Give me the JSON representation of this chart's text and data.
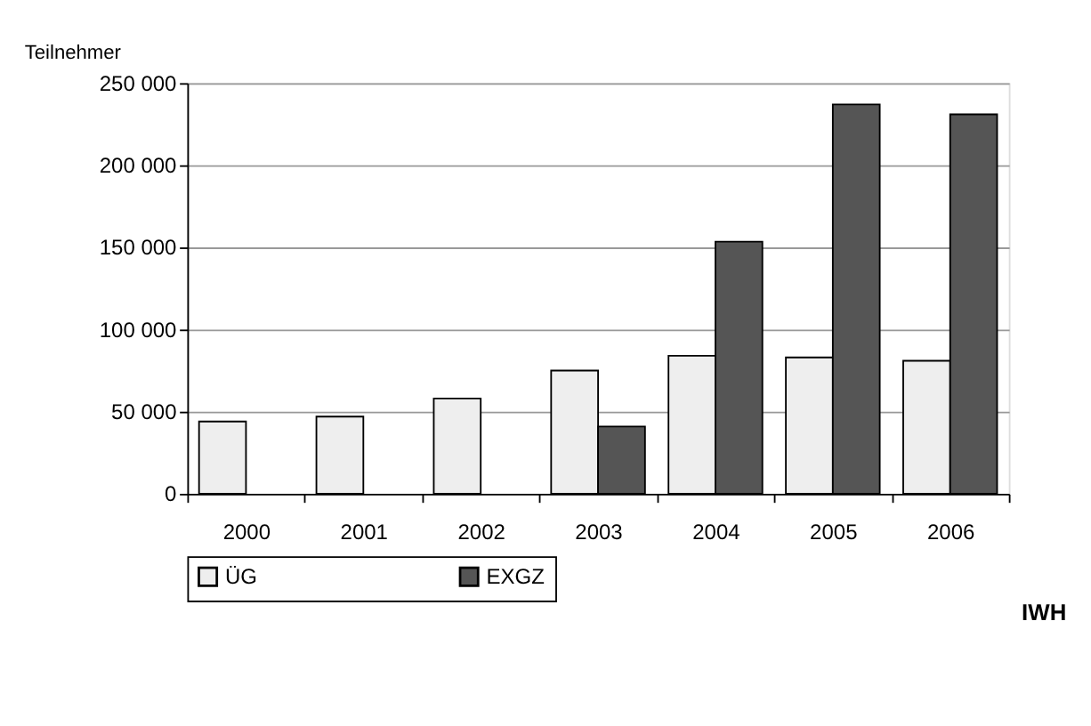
{
  "chart_data": {
    "type": "bar",
    "ylabel": "Teilnehmer",
    "categories": [
      "2000",
      "2001",
      "2002",
      "2003",
      "2004",
      "2005",
      "2006"
    ],
    "series": [
      {
        "name": "ÜG",
        "color": "#eeeeee",
        "values": [
          44000,
          47000,
          58000,
          75000,
          84000,
          83000,
          81000
        ]
      },
      {
        "name": "EXGZ",
        "color": "#555555",
        "values": [
          null,
          null,
          null,
          41000,
          153500,
          237000,
          231000
        ]
      }
    ],
    "ylim": [
      0,
      250000
    ],
    "yticks": [
      {
        "value": 0,
        "label": "0"
      },
      {
        "value": 50000,
        "label": "50 000"
      },
      {
        "value": 100000,
        "label": "100 000"
      },
      {
        "value": 150000,
        "label": "150 000"
      },
      {
        "value": 200000,
        "label": "200 000"
      },
      {
        "value": 250000,
        "label": "250 000"
      }
    ],
    "grid": "y",
    "legend": "bottom",
    "annotations": [
      "IWH"
    ]
  }
}
